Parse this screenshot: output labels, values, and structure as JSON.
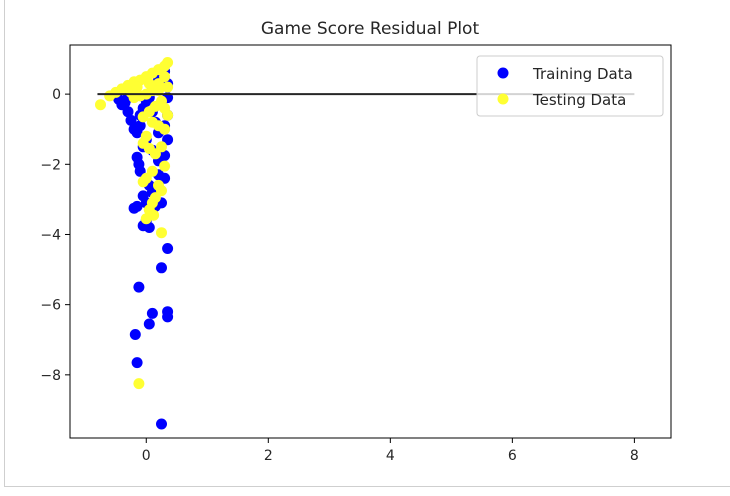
{
  "chart_data": {
    "type": "scatter",
    "title": "Game Score Residual Plot",
    "xlabel": "",
    "ylabel": "",
    "xlim": [
      -1.25,
      8.6
    ],
    "ylim": [
      -9.8,
      1.4
    ],
    "xticks": [
      0,
      2,
      4,
      6,
      8
    ],
    "xtick_labels": [
      "0",
      "2",
      "4",
      "6",
      "8"
    ],
    "yticks": [
      0,
      -2,
      -4,
      -6,
      -8
    ],
    "ytick_labels": [
      "0",
      "−2",
      "−4",
      "−6",
      "−8"
    ],
    "grid": false,
    "legend_position": "top-right",
    "hline": {
      "y": 0,
      "x_from": -0.8,
      "x_to": 8.0,
      "color": "#262626"
    },
    "series": [
      {
        "name": "Training Data",
        "color": "#0000ff",
        "points": [
          [
            -0.5,
            0.0
          ],
          [
            -0.45,
            -0.15
          ],
          [
            -0.4,
            -0.3
          ],
          [
            -0.3,
            -0.5
          ],
          [
            -0.35,
            -0.25
          ],
          [
            -0.25,
            -0.75
          ],
          [
            -0.2,
            -1.0
          ],
          [
            -0.15,
            -1.1
          ],
          [
            -0.1,
            -0.9
          ],
          [
            -0.1,
            -0.6
          ],
          [
            -0.05,
            -0.4
          ],
          [
            0.0,
            -0.2
          ],
          [
            0.05,
            -0.1
          ],
          [
            0.1,
            -0.5
          ],
          [
            0.15,
            -0.8
          ],
          [
            0.2,
            -1.1
          ],
          [
            0.3,
            -0.9
          ],
          [
            0.35,
            -0.6
          ],
          [
            0.35,
            -1.3
          ],
          [
            0.3,
            -1.75
          ],
          [
            0.2,
            -1.9
          ],
          [
            0.1,
            -1.6
          ],
          [
            0.0,
            -1.3
          ],
          [
            -0.05,
            -1.5
          ],
          [
            -0.15,
            -1.8
          ],
          [
            -0.12,
            -2.0
          ],
          [
            -0.1,
            -2.2
          ],
          [
            0.0,
            -2.5
          ],
          [
            0.05,
            -2.6
          ],
          [
            0.2,
            -2.3
          ],
          [
            0.3,
            -2.4
          ],
          [
            -0.05,
            -2.9
          ],
          [
            0.0,
            -3.1
          ],
          [
            0.1,
            -2.8
          ],
          [
            0.15,
            -3.0
          ],
          [
            -0.2,
            -3.25
          ],
          [
            -0.15,
            -3.2
          ],
          [
            0.1,
            -3.4
          ],
          [
            0.15,
            -3.2
          ],
          [
            0.25,
            -3.1
          ],
          [
            0.0,
            -3.6
          ],
          [
            -0.05,
            -3.75
          ],
          [
            0.05,
            -3.8
          ],
          [
            0.35,
            -4.4
          ],
          [
            0.25,
            -4.95
          ],
          [
            -0.12,
            -5.5
          ],
          [
            0.05,
            -6.55
          ],
          [
            0.1,
            -6.25
          ],
          [
            0.35,
            -6.2
          ],
          [
            0.35,
            -6.35
          ],
          [
            -0.18,
            -6.85
          ],
          [
            -0.15,
            -7.65
          ],
          [
            0.25,
            -9.4
          ],
          [
            0.35,
            0.3
          ],
          [
            0.3,
            0.65
          ],
          [
            0.2,
            0.4
          ],
          [
            0.1,
            0.2
          ],
          [
            0.35,
            -0.1
          ],
          [
            0.25,
            -0.3
          ],
          [
            -0.3,
            -0.1
          ]
        ]
      },
      {
        "name": "Testing Data",
        "color": "#ffff33",
        "points": [
          [
            -0.75,
            -0.3
          ],
          [
            -0.6,
            -0.05
          ],
          [
            -0.5,
            0.05
          ],
          [
            -0.4,
            0.15
          ],
          [
            -0.3,
            0.25
          ],
          [
            -0.2,
            0.35
          ],
          [
            -0.1,
            0.4
          ],
          [
            0.0,
            0.5
          ],
          [
            0.1,
            0.6
          ],
          [
            0.2,
            0.7
          ],
          [
            0.3,
            0.8
          ],
          [
            0.35,
            0.9
          ],
          [
            0.3,
            0.5
          ],
          [
            0.2,
            0.3
          ],
          [
            0.1,
            0.1
          ],
          [
            0.0,
            0.0
          ],
          [
            -0.1,
            -0.05
          ],
          [
            -0.2,
            -0.1
          ],
          [
            0.25,
            -0.2
          ],
          [
            0.15,
            -0.35
          ],
          [
            0.05,
            -0.5
          ],
          [
            -0.05,
            -0.65
          ],
          [
            0.1,
            -0.8
          ],
          [
            0.2,
            -0.9
          ],
          [
            0.3,
            -1.0
          ],
          [
            0.0,
            -1.2
          ],
          [
            -0.05,
            -1.4
          ],
          [
            0.05,
            -1.55
          ],
          [
            0.15,
            -1.7
          ],
          [
            0.25,
            -1.5
          ],
          [
            0.3,
            -2.05
          ],
          [
            0.1,
            -2.2
          ],
          [
            0.0,
            -2.4
          ],
          [
            -0.05,
            -2.5
          ],
          [
            0.2,
            -2.6
          ],
          [
            0.25,
            -2.75
          ],
          [
            0.15,
            -2.95
          ],
          [
            0.1,
            -3.1
          ],
          [
            0.05,
            -3.3
          ],
          [
            0.0,
            -3.55
          ],
          [
            0.12,
            -3.45
          ],
          [
            0.25,
            -3.95
          ],
          [
            -0.12,
            -8.25
          ],
          [
            0.35,
            0.2
          ],
          [
            0.3,
            -0.4
          ],
          [
            -0.25,
            0.05
          ],
          [
            -0.15,
            0.2
          ],
          [
            0.05,
            0.3
          ],
          [
            0.2,
            0.1
          ],
          [
            0.35,
            -0.6
          ]
        ]
      }
    ]
  }
}
